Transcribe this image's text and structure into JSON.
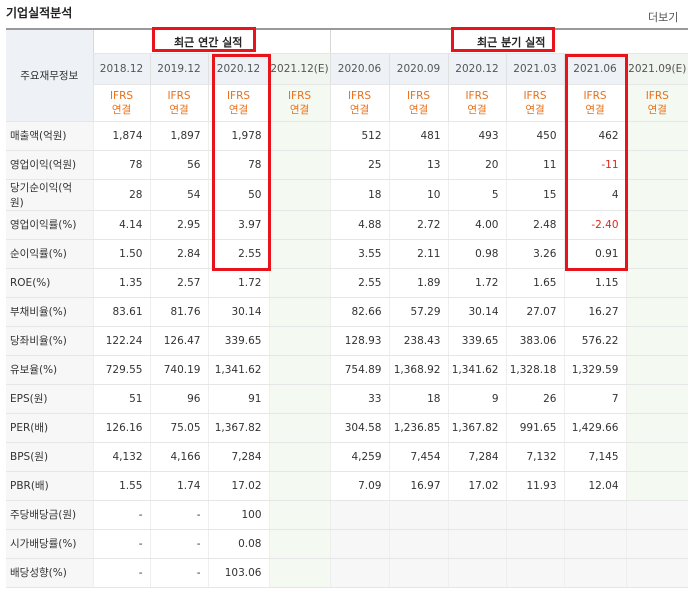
{
  "page_title": "기업실적분석",
  "more_link": "더보기",
  "row_header": "주요재무정보",
  "group_annual": "최근 연간 실적",
  "group_quarter": "최근 분기 실적",
  "periods": [
    "2018.12",
    "2019.12",
    "2020.12",
    "2021.12(E)",
    "2020.06",
    "2020.09",
    "2020.12",
    "2021.03",
    "2021.06",
    "2021.09(E)"
  ],
  "ifrs_line1": "IFRS",
  "ifrs_line2": "연결",
  "rows": [
    {
      "label": "매출액(억원)",
      "values": [
        "1,874",
        "1,897",
        "1,978",
        "",
        "512",
        "481",
        "493",
        "450",
        "462",
        ""
      ]
    },
    {
      "label": "영업이익(억원)",
      "values": [
        "78",
        "56",
        "78",
        "",
        "25",
        "13",
        "20",
        "11",
        "-11",
        ""
      ]
    },
    {
      "label": "당기순이익(억원)",
      "values": [
        "28",
        "54",
        "50",
        "",
        "18",
        "10",
        "5",
        "15",
        "4",
        ""
      ]
    },
    {
      "label": "영업이익률(%)",
      "values": [
        "4.14",
        "2.95",
        "3.97",
        "",
        "4.88",
        "2.72",
        "4.00",
        "2.48",
        "-2.40",
        ""
      ]
    },
    {
      "label": "순이익률(%)",
      "values": [
        "1.50",
        "2.84",
        "2.55",
        "",
        "3.55",
        "2.11",
        "0.98",
        "3.26",
        "0.91",
        ""
      ]
    },
    {
      "label": "ROE(%)",
      "values": [
        "1.35",
        "2.57",
        "1.72",
        "",
        "2.55",
        "1.89",
        "1.72",
        "1.65",
        "1.15",
        ""
      ]
    },
    {
      "label": "부채비율(%)",
      "values": [
        "83.61",
        "81.76",
        "30.14",
        "",
        "82.66",
        "57.29",
        "30.14",
        "27.07",
        "16.27",
        ""
      ]
    },
    {
      "label": "당좌비율(%)",
      "values": [
        "122.24",
        "126.47",
        "339.65",
        "",
        "128.93",
        "238.43",
        "339.65",
        "383.06",
        "576.22",
        ""
      ]
    },
    {
      "label": "유보율(%)",
      "values": [
        "729.55",
        "740.19",
        "1,341.62",
        "",
        "754.89",
        "1,368.92",
        "1,341.62",
        "1,328.18",
        "1,329.59",
        ""
      ]
    },
    {
      "label": "EPS(원)",
      "values": [
        "51",
        "96",
        "91",
        "",
        "33",
        "18",
        "9",
        "26",
        "7",
        ""
      ]
    },
    {
      "label": "PER(배)",
      "values": [
        "126.16",
        "75.05",
        "1,367.82",
        "",
        "304.58",
        "1,236.85",
        "1,367.82",
        "991.65",
        "1,429.66",
        ""
      ]
    },
    {
      "label": "BPS(원)",
      "values": [
        "4,132",
        "4,166",
        "7,284",
        "",
        "4,259",
        "7,454",
        "7,284",
        "7,132",
        "7,145",
        ""
      ]
    },
    {
      "label": "PBR(배)",
      "values": [
        "1.55",
        "1.74",
        "17.02",
        "",
        "7.09",
        "16.97",
        "17.02",
        "11.93",
        "12.04",
        ""
      ]
    },
    {
      "label": "주당배당금(원)",
      "values": [
        "-",
        "-",
        "100",
        "",
        "",
        "",
        "",
        "",
        "",
        ""
      ]
    },
    {
      "label": "시가배당률(%)",
      "values": [
        "-",
        "-",
        "0.08",
        "",
        "",
        "",
        "",
        "",
        "",
        ""
      ]
    },
    {
      "label": "배당성향(%)",
      "values": [
        "-",
        "-",
        "103.06",
        "",
        "",
        "",
        "",
        "",
        "",
        ""
      ]
    }
  ],
  "highlight_color": "#e8141b",
  "estimate_bg": "#f4f9f1",
  "negative_color": "#e0261d",
  "ifrs_color": "#e8701a"
}
